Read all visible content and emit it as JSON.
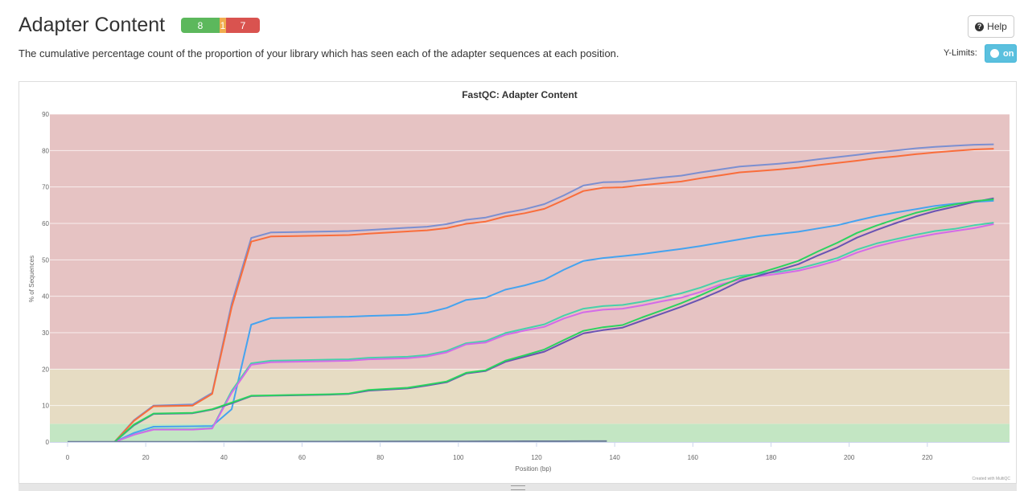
{
  "header": {
    "title": "Adapter Content",
    "status": {
      "pass": "8",
      "warn": "1",
      "fail": "7",
      "pass_color": "#5cb85c",
      "warn_color": "#f0ad4e",
      "fail_color": "#d9534f"
    },
    "subtitle": "The cumulative percentage count of the proportion of your library which has seen each of the adapter sequences at each position.",
    "help_label": "Help",
    "help_icon": "question-circle-icon",
    "ylimits_label": "Y-Limits:",
    "toggle_label": "on"
  },
  "chart_data": {
    "type": "line",
    "title": "FastQC: Adapter Content",
    "xlabel": "Position (bp)",
    "ylabel": "% of Sequences",
    "credit": "Created with MultiQC",
    "xlim": [
      0,
      240
    ],
    "ylim": [
      0,
      90
    ],
    "xticks": [
      "0",
      "20",
      "40",
      "60",
      "80",
      "100",
      "120",
      "140",
      "160",
      "180",
      "200",
      "220"
    ],
    "yticks": [
      "0",
      "10",
      "20",
      "30",
      "40",
      "50",
      "60",
      "70",
      "80",
      "90"
    ],
    "grid": true,
    "bands": [
      {
        "from": 0,
        "to": 5,
        "color": "#c3e6c3"
      },
      {
        "from": 5,
        "to": 20,
        "color": "#e6dcc3"
      },
      {
        "from": 20,
        "to": 90,
        "color": "#e6c3c3"
      }
    ],
    "series": [
      {
        "color": "#7b8fd1",
        "x": [
          0,
          12,
          17,
          22,
          32,
          37,
          42,
          47,
          52,
          57,
          67,
          72,
          77,
          87,
          92,
          97,
          102,
          107,
          112,
          117,
          122,
          127,
          132,
          137,
          142,
          147,
          152,
          157,
          162,
          167,
          172,
          177,
          182,
          187,
          192,
          197,
          202,
          207,
          212,
          217,
          222,
          227,
          232,
          237
        ],
        "y": [
          0,
          0,
          6,
          10,
          10.3,
          13.5,
          38,
          56,
          57.5,
          57.6,
          57.8,
          57.9,
          58.2,
          58.8,
          59.1,
          59.8,
          61,
          61.6,
          62.9,
          63.9,
          65.3,
          67.7,
          70.4,
          71.3,
          71.4,
          72,
          72.6,
          73.1,
          74,
          74.8,
          75.6,
          76,
          76.4,
          76.9,
          77.6,
          78.2,
          78.8,
          79.5,
          80,
          80.6,
          81,
          81.3,
          81.6,
          81.7
        ]
      },
      {
        "color": "#f96d3b",
        "x": [
          0,
          12,
          17,
          22,
          32,
          37,
          42,
          47,
          52,
          57,
          67,
          72,
          77,
          87,
          92,
          97,
          102,
          107,
          112,
          117,
          122,
          127,
          132,
          137,
          142,
          147,
          152,
          157,
          162,
          167,
          172,
          177,
          182,
          187,
          192,
          197,
          202,
          207,
          212,
          217,
          222,
          227,
          232,
          237
        ],
        "y": [
          0,
          0,
          5.8,
          9.8,
          10,
          13.2,
          37,
          55,
          56.4,
          56.5,
          56.7,
          56.8,
          57.2,
          57.8,
          58.1,
          58.7,
          59.9,
          60.5,
          61.9,
          62.8,
          64,
          66.4,
          68.9,
          69.8,
          69.9,
          70.5,
          71,
          71.5,
          72.4,
          73.2,
          74,
          74.4,
          74.8,
          75.3,
          76,
          76.6,
          77.2,
          77.9,
          78.4,
          79,
          79.5,
          79.9,
          80.3,
          80.5
        ]
      },
      {
        "color": "#45a3ef",
        "x": [
          0,
          12,
          17,
          22,
          32,
          37,
          42,
          47,
          52,
          57,
          67,
          72,
          77,
          87,
          92,
          97,
          102,
          107,
          112,
          117,
          122,
          127,
          132,
          137,
          142,
          147,
          152,
          157,
          162,
          167,
          172,
          177,
          182,
          187,
          192,
          197,
          202,
          207,
          212,
          217,
          222,
          227,
          232,
          237
        ],
        "y": [
          0,
          0,
          2.5,
          4.2,
          4.3,
          4.4,
          9,
          32.2,
          34,
          34.1,
          34.3,
          34.4,
          34.6,
          34.9,
          35.5,
          36.8,
          39,
          39.6,
          41.8,
          43,
          44.5,
          47.3,
          49.7,
          50.5,
          51,
          51.6,
          52.3,
          53,
          53.8,
          54.7,
          55.6,
          56.5,
          57.1,
          57.7,
          58.6,
          59.5,
          60.8,
          62,
          63,
          63.9,
          64.8,
          65.4,
          65.9,
          66.2
        ]
      },
      {
        "color": "#47d1a9",
        "x": [
          0,
          12,
          17,
          22,
          32,
          37,
          42,
          47,
          52,
          57,
          67,
          72,
          77,
          87,
          92,
          97,
          102,
          107,
          112,
          117,
          122,
          127,
          132,
          137,
          142,
          147,
          152,
          157,
          162,
          167,
          172,
          177,
          182,
          187,
          192,
          197,
          202,
          207,
          212,
          217,
          222,
          227,
          232,
          237
        ],
        "y": [
          0,
          0,
          2,
          3.5,
          3.5,
          3.8,
          14,
          21.6,
          22.3,
          22.4,
          22.6,
          22.7,
          23.1,
          23.4,
          23.9,
          25,
          27.1,
          27.7,
          29.9,
          31.1,
          32.3,
          34.7,
          36.6,
          37.3,
          37.6,
          38.5,
          39.6,
          40.8,
          42.4,
          44.3,
          45.6,
          46.2,
          46.7,
          47.6,
          49,
          50.5,
          52.8,
          54.5,
          55.7,
          56.9,
          57.9,
          58.5,
          59.5,
          60.2
        ]
      },
      {
        "color": "#d36be8",
        "x": [
          0,
          12,
          17,
          22,
          32,
          37,
          42,
          47,
          52,
          57,
          67,
          72,
          77,
          87,
          92,
          97,
          102,
          107,
          112,
          117,
          122,
          127,
          132,
          137,
          142,
          147,
          152,
          157,
          162,
          167,
          172,
          177,
          182,
          187,
          192,
          197,
          202,
          207,
          212,
          217,
          222,
          227,
          232,
          237
        ],
        "y": [
          0,
          0,
          2,
          3.4,
          3.4,
          3.7,
          13.5,
          21.2,
          21.9,
          22,
          22.2,
          22.3,
          22.7,
          23,
          23.5,
          24.6,
          26.8,
          27.3,
          29.4,
          30.6,
          31.6,
          33.9,
          35.6,
          36.3,
          36.6,
          37.5,
          38.6,
          39.6,
          41.2,
          43.2,
          44.6,
          45.5,
          46.2,
          47,
          48.3,
          49.8,
          52,
          53.7,
          55,
          56.1,
          57.1,
          57.9,
          58.7,
          59.8
        ]
      },
      {
        "color": "#6953b3",
        "x": [
          0,
          12,
          17,
          22,
          32,
          37,
          42,
          47,
          52,
          57,
          67,
          72,
          77,
          87,
          92,
          97,
          102,
          107,
          112,
          117,
          122,
          127,
          132,
          137,
          142,
          147,
          152,
          157,
          162,
          167,
          172,
          177,
          182,
          187,
          192,
          197,
          202,
          207,
          212,
          217,
          222,
          227,
          232,
          237
        ],
        "y": [
          0,
          0,
          4.6,
          7.7,
          7.9,
          8.9,
          10.6,
          12.6,
          12.7,
          12.8,
          13,
          13.2,
          14.1,
          14.7,
          15.5,
          16.4,
          18.8,
          19.5,
          22,
          23.4,
          24.8,
          27.3,
          29.8,
          30.7,
          31.4,
          33.3,
          35.2,
          37.1,
          39.2,
          41.5,
          44.1,
          45.7,
          47.2,
          48.8,
          51.2,
          53.4,
          56.1,
          58.2,
          60.1,
          61.9,
          63.4,
          64.6,
          65.9,
          66.9
        ]
      },
      {
        "color": "#2bd25f",
        "x": [
          0,
          12,
          17,
          22,
          32,
          37,
          42,
          47,
          52,
          57,
          67,
          72,
          77,
          87,
          92,
          97,
          102,
          107,
          112,
          117,
          122,
          127,
          132,
          137,
          142,
          147,
          152,
          157,
          162,
          167,
          172,
          177,
          182,
          187,
          192,
          197,
          202,
          207,
          212,
          217,
          222,
          227,
          232,
          237
        ],
        "y": [
          0,
          0,
          4.8,
          7.8,
          8,
          9,
          10.8,
          12.7,
          12.8,
          12.9,
          13.1,
          13.3,
          14.3,
          14.9,
          15.7,
          16.6,
          19,
          19.7,
          22.3,
          23.8,
          25.4,
          28,
          30.5,
          31.5,
          32.1,
          34.2,
          36.1,
          38.1,
          40.3,
          42.7,
          45,
          46.4,
          48,
          49.7,
          52.3,
          54.7,
          57.4,
          59.4,
          61.2,
          62.9,
          64.1,
          65.2,
          66.1,
          66.6
        ]
      },
      {
        "color": "#6f7f9c",
        "x": [
          0,
          12,
          17,
          22,
          32,
          37,
          42,
          47,
          52,
          57,
          67,
          72,
          77,
          87,
          92,
          97,
          102,
          107,
          112,
          117,
          122,
          127,
          132,
          137,
          138
        ],
        "y": [
          0.05,
          0.05,
          0.06,
          0.06,
          0.07,
          0.08,
          0.09,
          0.1,
          0.1,
          0.11,
          0.12,
          0.13,
          0.14,
          0.15,
          0.16,
          0.17,
          0.18,
          0.19,
          0.2,
          0.21,
          0.22,
          0.23,
          0.24,
          0.25,
          0.25
        ]
      }
    ]
  }
}
